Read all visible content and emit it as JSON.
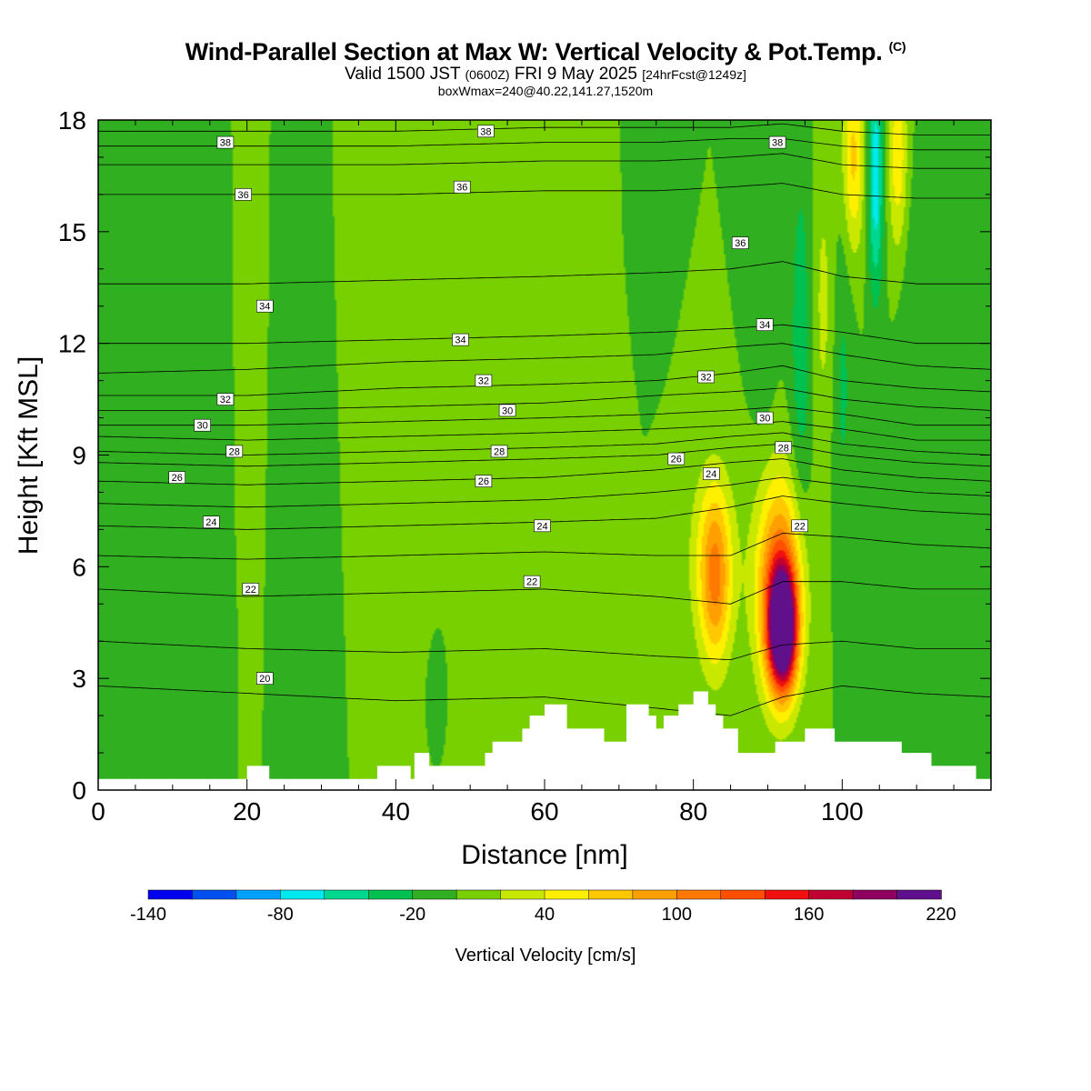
{
  "header": {
    "title": "Wind-Parallel Section at Max W: Vertical Velocity & Pot.Temp.",
    "copyright": "(C)",
    "valid_prefix": "Valid 1500 JST",
    "valid_utc": "(0600Z)",
    "valid_date": "FRI 9 May 2025",
    "valid_fcst": "[24hrFcst@1249z]",
    "box_info": "boxWmax=240@40.22,141.27,1520m"
  },
  "chart_data": {
    "type": "heatmap",
    "xlabel": "Distance [nm]",
    "ylabel": "Height [Kft MSL]",
    "xlim": [
      0,
      120
    ],
    "ylim": [
      0,
      18
    ],
    "x_ticks": [
      "0",
      "20",
      "40",
      "60",
      "80",
      "100"
    ],
    "x_tick_values": [
      0,
      20,
      40,
      60,
      80,
      100
    ],
    "y_ticks": [
      "0",
      "3",
      "6",
      "9",
      "12",
      "15",
      "18"
    ],
    "y_tick_values": [
      0,
      3,
      6,
      9,
      12,
      15,
      18
    ],
    "colorbar": {
      "title": "Vertical Velocity [cm/s]",
      "labels": [
        "-140",
        "-80",
        "-20",
        "40",
        "100",
        "160",
        "220"
      ],
      "label_values": [
        -140,
        -80,
        -20,
        40,
        100,
        160,
        220
      ],
      "bounds": [
        -140,
        220
      ],
      "step": 20,
      "colors": [
        "#0000f0",
        "#0050f0",
        "#00a0ff",
        "#00e8f0",
        "#00d890",
        "#00c050",
        "#30b020",
        "#78d000",
        "#c8e800",
        "#fff000",
        "#ffc800",
        "#ffa000",
        "#ff7800",
        "#ff5000",
        "#f01010",
        "#c00030",
        "#900060",
        "#60108a"
      ]
    },
    "background_velocity": 0,
    "velocity_features": [
      {
        "x": 92,
        "z": 4.3,
        "sx": 1.3,
        "sz": 1.1,
        "amp": 240
      },
      {
        "x": 91.5,
        "z": 5.5,
        "sx": 2.2,
        "sz": 2.0,
        "amp": 120
      },
      {
        "x": 83,
        "z": 5.6,
        "sx": 1.4,
        "sz": 1.6,
        "amp": 70
      },
      {
        "x": 82.5,
        "z": 6.2,
        "sx": 2.2,
        "sz": 1.8,
        "amp": 45
      },
      {
        "x": 104.5,
        "z": 16.5,
        "sx": 0.7,
        "sz": 2.2,
        "amp": -75
      },
      {
        "x": 101.5,
        "z": 17,
        "sx": 1.0,
        "sz": 1.8,
        "amp": 65
      },
      {
        "x": 107.5,
        "z": 17,
        "sx": 0.9,
        "sz": 1.8,
        "amp": 55
      },
      {
        "x": 97.5,
        "z": 13,
        "sx": 1.2,
        "sz": 3.0,
        "amp": 25
      },
      {
        "x": 94.5,
        "z": 12,
        "sx": 1.0,
        "sz": 3.5,
        "amp": -35
      },
      {
        "x": 100,
        "z": 11,
        "sx": 1.0,
        "sz": 3.0,
        "amp": -25
      },
      {
        "x": 110,
        "z": 12,
        "sx": 1.5,
        "sz": 3.0,
        "amp": -20
      },
      {
        "x": 89.5,
        "z": 15,
        "sx": 1.2,
        "sz": 3.5,
        "amp": -20
      },
      {
        "x": 73,
        "z": 16.5,
        "sx": 1.5,
        "sz": 2.0,
        "amp": -20
      },
      {
        "x": 20,
        "z": 13,
        "sx": 1.5,
        "sz": 5,
        "amp": 15
      },
      {
        "x": 36,
        "z": 12,
        "sx": 1.5,
        "sz": 4,
        "amp": 18
      },
      {
        "x": 45,
        "z": 10,
        "sx": 1.5,
        "sz": 5,
        "amp": 15
      },
      {
        "x": 58,
        "z": 12,
        "sx": 2.0,
        "sz": 5,
        "amp": 20
      },
      {
        "x": 68,
        "z": 12,
        "sx": 1.5,
        "sz": 5,
        "amp": 18
      },
      {
        "x": 48,
        "z": 4,
        "sx": 1.5,
        "sz": 3,
        "amp": 15
      },
      {
        "x": 66,
        "z": 4,
        "sx": 1.2,
        "sz": 2,
        "amp": 15
      },
      {
        "x": 76,
        "z": 3.5,
        "sx": 1.2,
        "sz": 2,
        "amp": 15
      },
      {
        "x": 8,
        "z": 4.5,
        "sx": 4,
        "sz": 1.6,
        "amp": -15
      },
      {
        "x": 12,
        "z": 12,
        "sx": 6,
        "sz": 5,
        "amp": -12
      },
      {
        "x": 28,
        "z": 6,
        "sx": 2,
        "sz": 4,
        "amp": -12
      },
      {
        "x": 46,
        "z": 3,
        "sx": 1.2,
        "sz": 1.5,
        "amp": -18
      },
      {
        "x": 112,
        "z": 4,
        "sx": 3,
        "sz": 2.5,
        "amp": -12
      }
    ],
    "terrain": [
      [
        0,
        0.3
      ],
      [
        20,
        0.3
      ],
      [
        20,
        0.65
      ],
      [
        23,
        0.65
      ],
      [
        23,
        0.3
      ],
      [
        37.5,
        0.3
      ],
      [
        37.5,
        0.65
      ],
      [
        42,
        0.65
      ],
      [
        42,
        0.3
      ],
      [
        42.5,
        0.3
      ],
      [
        42.5,
        1.0
      ],
      [
        44.5,
        1.0
      ],
      [
        44.5,
        0.65
      ],
      [
        52,
        0.65
      ],
      [
        52,
        1.0
      ],
      [
        53,
        1.0
      ],
      [
        53,
        1.3
      ],
      [
        57,
        1.3
      ],
      [
        57,
        1.65
      ],
      [
        58,
        1.65
      ],
      [
        58,
        2.0
      ],
      [
        60,
        2.0
      ],
      [
        60,
        2.3
      ],
      [
        63,
        2.3
      ],
      [
        63,
        1.65
      ],
      [
        68,
        1.65
      ],
      [
        68,
        1.3
      ],
      [
        71,
        1.3
      ],
      [
        71,
        2.3
      ],
      [
        74,
        2.3
      ],
      [
        74,
        2.0
      ],
      [
        75,
        2.0
      ],
      [
        75,
        1.65
      ],
      [
        76,
        1.65
      ],
      [
        76,
        2.0
      ],
      [
        78,
        2.0
      ],
      [
        78,
        2.3
      ],
      [
        80,
        2.3
      ],
      [
        80,
        2.65
      ],
      [
        82,
        2.65
      ],
      [
        82,
        2.3
      ],
      [
        83,
        2.3
      ],
      [
        83,
        2.0
      ],
      [
        84,
        2.0
      ],
      [
        84,
        1.65
      ],
      [
        86,
        1.65
      ],
      [
        86,
        1.0
      ],
      [
        91,
        1.0
      ],
      [
        91,
        1.3
      ],
      [
        95,
        1.3
      ],
      [
        95,
        1.65
      ],
      [
        99,
        1.65
      ],
      [
        99,
        1.3
      ],
      [
        108,
        1.3
      ],
      [
        108,
        1.0
      ],
      [
        112,
        1.0
      ],
      [
        112,
        0.65
      ],
      [
        118,
        0.65
      ],
      [
        118,
        0.3
      ],
      [
        120,
        0.3
      ]
    ],
    "theta_levels": [
      20,
      21,
      22,
      23,
      24,
      25,
      26,
      27,
      28,
      29,
      30,
      31,
      32,
      33,
      34,
      35,
      36,
      37,
      38,
      39
    ],
    "theta_anchor_x": [
      0,
      20,
      40,
      60,
      75,
      85,
      92,
      100,
      110,
      120
    ],
    "theta_heights": [
      [
        2.8,
        2.6,
        2.4,
        2.5,
        2.2,
        2.0,
        2.5,
        2.8,
        2.6,
        2.5
      ],
      [
        4.0,
        3.8,
        3.7,
        3.8,
        3.6,
        3.5,
        3.9,
        4.0,
        3.8,
        3.8
      ],
      [
        5.4,
        5.2,
        5.3,
        5.4,
        5.2,
        5.0,
        5.6,
        5.6,
        5.4,
        5.4
      ],
      [
        6.3,
        6.2,
        6.3,
        6.4,
        6.3,
        6.3,
        6.9,
        6.8,
        6.6,
        6.5
      ],
      [
        7.1,
        7.0,
        7.1,
        7.2,
        7.3,
        7.6,
        7.9,
        7.7,
        7.5,
        7.4
      ],
      [
        7.7,
        7.6,
        7.7,
        7.8,
        8.0,
        8.2,
        8.4,
        8.2,
        8.0,
        7.9
      ],
      [
        8.3,
        8.2,
        8.3,
        8.4,
        8.6,
        8.8,
        8.9,
        8.6,
        8.4,
        8.3
      ],
      [
        8.8,
        8.7,
        8.8,
        8.9,
        9.0,
        9.2,
        9.3,
        9.0,
        8.8,
        8.7
      ],
      [
        9.1,
        9.0,
        9.1,
        9.2,
        9.3,
        9.5,
        9.6,
        9.3,
        9.1,
        9.0
      ],
      [
        9.5,
        9.4,
        9.5,
        9.6,
        9.7,
        9.8,
        9.9,
        9.7,
        9.4,
        9.4
      ],
      [
        9.8,
        9.8,
        9.9,
        10.0,
        10.1,
        10.2,
        10.3,
        10.1,
        9.8,
        9.8
      ],
      [
        10.2,
        10.2,
        10.3,
        10.4,
        10.6,
        10.7,
        10.8,
        10.5,
        10.3,
        10.2
      ],
      [
        10.6,
        10.6,
        10.8,
        10.9,
        11.0,
        11.2,
        11.4,
        11.0,
        10.8,
        10.7
      ],
      [
        11.2,
        11.3,
        11.5,
        11.6,
        11.7,
        11.9,
        12.0,
        11.7,
        11.4,
        11.3
      ],
      [
        12.0,
        12.0,
        12.1,
        12.2,
        12.3,
        12.4,
        12.5,
        12.3,
        12.0,
        12.0
      ],
      [
        13.6,
        13.6,
        13.7,
        13.8,
        13.9,
        14.0,
        14.2,
        13.8,
        13.6,
        13.6
      ],
      [
        16.0,
        16.0,
        16.0,
        16.1,
        16.1,
        16.2,
        16.3,
        16.0,
        15.9,
        15.9
      ],
      [
        16.8,
        16.8,
        16.8,
        16.9,
        16.9,
        17.0,
        17.1,
        16.8,
        16.7,
        16.7
      ],
      [
        17.3,
        17.3,
        17.3,
        17.4,
        17.4,
        17.5,
        17.5,
        17.3,
        17.2,
        17.2
      ],
      [
        17.7,
        17.7,
        17.7,
        17.8,
        17.8,
        17.8,
        17.9,
        17.7,
        17.6,
        17.6
      ]
    ],
    "theta_labels": [
      {
        "text": "38",
        "x": 17.1,
        "z": 17.4
      },
      {
        "text": "38",
        "x": 52.1,
        "z": 17.7
      },
      {
        "text": "38",
        "x": 91.3,
        "z": 17.4
      },
      {
        "text": "36",
        "x": 19.5,
        "z": 16.0
      },
      {
        "text": "36",
        "x": 48.9,
        "z": 16.2
      },
      {
        "text": "36",
        "x": 86.3,
        "z": 14.7
      },
      {
        "text": "34",
        "x": 22.4,
        "z": 13.0
      },
      {
        "text": "34",
        "x": 48.7,
        "z": 12.1
      },
      {
        "text": "34",
        "x": 89.6,
        "z": 12.5
      },
      {
        "text": "32",
        "x": 17.1,
        "z": 10.5
      },
      {
        "text": "32",
        "x": 51.8,
        "z": 11.0
      },
      {
        "text": "32",
        "x": 81.7,
        "z": 11.1
      },
      {
        "text": "30",
        "x": 14.0,
        "z": 9.8
      },
      {
        "text": "30",
        "x": 55.0,
        "z": 10.2
      },
      {
        "text": "30",
        "x": 89.6,
        "z": 10.0
      },
      {
        "text": "28",
        "x": 18.3,
        "z": 9.1
      },
      {
        "text": "28",
        "x": 53.9,
        "z": 9.1
      },
      {
        "text": "28",
        "x": 92.1,
        "z": 9.2
      },
      {
        "text": "26",
        "x": 10.6,
        "z": 8.4
      },
      {
        "text": "26",
        "x": 51.8,
        "z": 8.3
      },
      {
        "text": "26",
        "x": 77.7,
        "z": 8.9
      },
      {
        "text": "24",
        "x": 15.2,
        "z": 7.2
      },
      {
        "text": "24",
        "x": 59.7,
        "z": 7.1
      },
      {
        "text": "24",
        "x": 82.4,
        "z": 8.5
      },
      {
        "text": "22",
        "x": 20.5,
        "z": 5.4
      },
      {
        "text": "22",
        "x": 58.3,
        "z": 5.6
      },
      {
        "text": "22",
        "x": 94.3,
        "z": 7.1
      },
      {
        "text": "20",
        "x": 22.4,
        "z": 3.0
      }
    ]
  }
}
